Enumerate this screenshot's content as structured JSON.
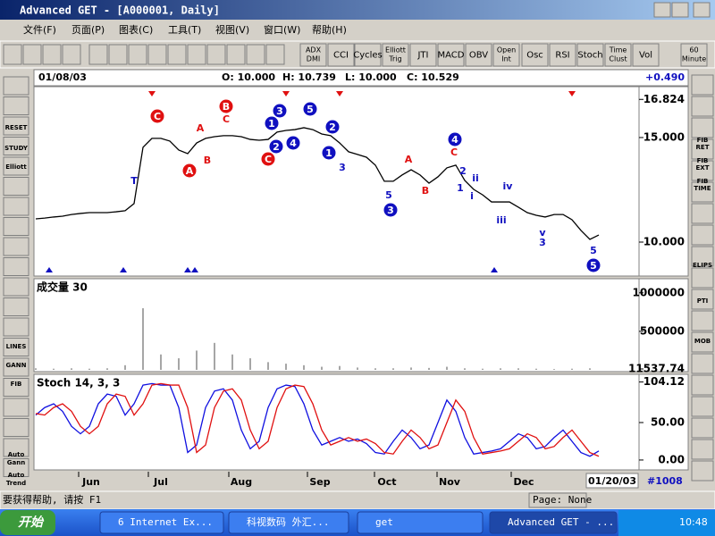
{
  "window": {
    "title": "Advanced GET - [A000001, Daily]"
  },
  "menu": {
    "items": [
      "文件(F)",
      "页面(P)",
      "图表(C)",
      "工具(T)",
      "视图(V)",
      "窗口(W)",
      "帮助(H)"
    ]
  },
  "toolbar": {
    "buttons": [
      [
        "ADX",
        "DMI"
      ],
      [
        "CCI"
      ],
      [
        "Cycles"
      ],
      [
        "Elliott",
        "Trig"
      ],
      [
        "JTI"
      ],
      [
        "MACD"
      ],
      [
        "OBV"
      ],
      [
        "Open",
        "Int"
      ],
      [
        "Osc"
      ],
      [
        "RSI"
      ],
      [
        "Stoch"
      ],
      [
        "Time",
        "Clust"
      ],
      [
        "Vol"
      ],
      [
        "60",
        "Minute"
      ]
    ]
  },
  "left_toolbar": {
    "labels": [
      [
        "RESET"
      ],
      [
        "STUDY"
      ],
      [
        "Elliott"
      ],
      [
        "LINES"
      ],
      [
        "GANN"
      ],
      [
        "FIB"
      ],
      [
        "Auto",
        "Gann"
      ],
      [
        "Auto",
        "Trend"
      ]
    ]
  },
  "right_toolbar": {
    "labels": [
      [
        "FIB",
        "RET"
      ],
      [
        "FIB",
        "EXT"
      ],
      [
        "FIB",
        "TIME"
      ],
      [
        "ELIPS"
      ],
      [
        "PTI"
      ],
      [
        "MOB"
      ]
    ]
  },
  "header": {
    "date": "01/08/03",
    "open": "O: 10.000",
    "high": "H: 10.739",
    "low": "L: 10.000",
    "close": "C: 10.529",
    "change": "+0.490"
  },
  "chart_data": [
    {
      "type": "line",
      "color": "#000000",
      "values": [
        11.11,
        11.15,
        11.2,
        11.24,
        11.32,
        11.37,
        11.41,
        11.41,
        11.41,
        11.45,
        11.5,
        11.84,
        14.53,
        14.96,
        14.96,
        14.83,
        14.4,
        14.23,
        14.74,
        14.96,
        15.04,
        15.09,
        15.09,
        15.04,
        14.91,
        14.87,
        14.91,
        15.26,
        15.34,
        15.38,
        15.47,
        15.38,
        15.17,
        15.09,
        14.74,
        14.32,
        14.19,
        14.06,
        13.68,
        12.91,
        12.91,
        13.21,
        13.46,
        13.21,
        12.82,
        13.12,
        13.55,
        13.68,
        12.95,
        12.52,
        12.26,
        11.92,
        11.92,
        11.92,
        11.67,
        11.41,
        11.28,
        11.2,
        11.32,
        11.32,
        11.07,
        10.56,
        10.13,
        10.34
      ],
      "ylim": [
        8.42,
        17.39
      ],
      "yticks": [
        16.824,
        {
          "value": 15,
          "label": "15.000"
        },
        {
          "value": 10,
          "label": "10.000"
        }
      ],
      "annotations": [
        {
          "text": "C",
          "color": "#e01010",
          "style": "circle"
        },
        {
          "text": "A",
          "color": "#e01010",
          "style": "circle"
        },
        {
          "text": "B",
          "color": "#e01010",
          "style": "circle"
        },
        {
          "text": "C",
          "color": "#e01010",
          "style": "circle"
        },
        {
          "text": "1",
          "color": "#1010c0",
          "style": "circle"
        },
        {
          "text": "3",
          "color": "#1010c0",
          "style": "circle"
        },
        {
          "text": "2",
          "color": "#1010c0",
          "style": "circle"
        },
        {
          "text": "4",
          "color": "#1010c0",
          "style": "circle"
        },
        {
          "text": "5",
          "color": "#1010c0",
          "style": "circle"
        },
        {
          "text": "2",
          "color": "#1010c0",
          "style": "circle"
        },
        {
          "text": "1",
          "color": "#1010c0",
          "style": "circle"
        },
        {
          "text": "3",
          "color": "#1010c0",
          "style": "circle"
        },
        {
          "text": "4",
          "color": "#1010c0",
          "style": "circle"
        },
        {
          "text": "5",
          "color": "#1010c0",
          "style": "circle"
        },
        {
          "text": "A",
          "color": "#e01010",
          "style": "plain"
        },
        {
          "text": "B",
          "color": "#e01010",
          "style": "plain"
        },
        {
          "text": "C",
          "color": "#e01010",
          "style": "plain"
        },
        {
          "text": "T",
          "color": "#1010c0",
          "style": "plain"
        },
        {
          "text": "3",
          "color": "#1010c0",
          "style": "plain"
        },
        {
          "text": "5",
          "color": "#1010c0",
          "style": "plain"
        },
        {
          "text": "A",
          "color": "#e01010",
          "style": "plain"
        },
        {
          "text": "B",
          "color": "#e01010",
          "style": "plain"
        },
        {
          "text": "C",
          "color": "#e01010",
          "style": "plain"
        },
        {
          "text": "2",
          "color": "#1010c0",
          "style": "plain"
        },
        {
          "text": "ii",
          "color": "#1010c0",
          "style": "plain"
        },
        {
          "text": "i",
          "color": "#1010c0",
          "style": "plain"
        },
        {
          "text": "1",
          "color": "#1010c0",
          "style": "plain"
        },
        {
          "text": "iv",
          "color": "#1010c0",
          "style": "plain"
        },
        {
          "text": "iii",
          "color": "#1010c0",
          "style": "plain"
        },
        {
          "text": "v",
          "color": "#1010c0",
          "style": "plain"
        },
        {
          "text": "3",
          "color": "#1010c0",
          "style": "plain"
        },
        {
          "text": "5",
          "color": "#1010c0",
          "style": "plain"
        }
      ]
    },
    {
      "type": "bar",
      "title": "成交量 30",
      "color": "#909090",
      "values": [
        20000,
        15000,
        20000,
        15000,
        20000,
        60000,
        800000,
        200000,
        150000,
        250000,
        350000,
        200000,
        150000,
        100000,
        80000,
        60000,
        40000,
        50000,
        30000,
        20000,
        20000,
        30000,
        25000,
        40000,
        20000,
        15000,
        20000,
        20000,
        15000,
        10000,
        15000,
        20000
      ],
      "ylim": [
        0,
        1160000
      ],
      "yticks": [
        1000000,
        500000,
        11537.74
      ]
    },
    {
      "type": "line",
      "title": "Stoch 14, 3, 3",
      "series": [
        {
          "color": "#1010e0",
          "values": [
            60,
            70,
            75,
            65,
            45,
            35,
            45,
            75,
            88,
            85,
            60,
            75,
            100,
            102,
            100,
            100,
            70,
            10,
            20,
            70,
            92,
            95,
            80,
            40,
            15,
            25,
            70,
            95,
            100,
            98,
            75,
            40,
            20,
            25,
            30,
            25,
            28,
            22,
            10,
            8,
            25,
            40,
            30,
            15,
            20,
            50,
            80,
            65,
            30,
            8,
            10,
            12,
            15,
            25,
            35,
            30,
            15,
            18,
            30,
            40,
            25,
            10,
            5,
            12
          ]
        },
        {
          "color": "#e01010",
          "values": [
            62,
            60,
            70,
            75,
            65,
            45,
            35,
            45,
            75,
            88,
            85,
            60,
            75,
            100,
            102,
            100,
            100,
            70,
            10,
            20,
            70,
            92,
            95,
            80,
            40,
            15,
            25,
            70,
            95,
            100,
            98,
            75,
            40,
            20,
            25,
            30,
            25,
            28,
            22,
            10,
            8,
            25,
            40,
            30,
            15,
            20,
            50,
            80,
            65,
            30,
            8,
            10,
            12,
            15,
            25,
            35,
            30,
            15,
            18,
            30,
            40,
            25,
            10,
            5
          ]
        }
      ],
      "ylim": [
        -12,
        112
      ],
      "yticks": [
        {
          "value": 104.12,
          "label": "104.12"
        },
        {
          "value": 50,
          "label": "50.00"
        },
        {
          "value": 0,
          "label": "0.00"
        }
      ]
    }
  ],
  "x_axis": {
    "labels": [
      "Jun",
      "Jul",
      "Aug",
      "Sep",
      "Oct",
      "Nov",
      "Dec"
    ],
    "end_date": "01/20/03",
    "bar_count": "#1008"
  },
  "status_bar": {
    "help": "要获得帮助, 请按 F1",
    "page": "Page: None"
  },
  "taskbar": {
    "start": "开始",
    "tasks": [
      "6 Internet Ex...",
      "科视数码 外汇...",
      "get",
      "Advanced GET - ..."
    ],
    "clock": "10:48"
  }
}
